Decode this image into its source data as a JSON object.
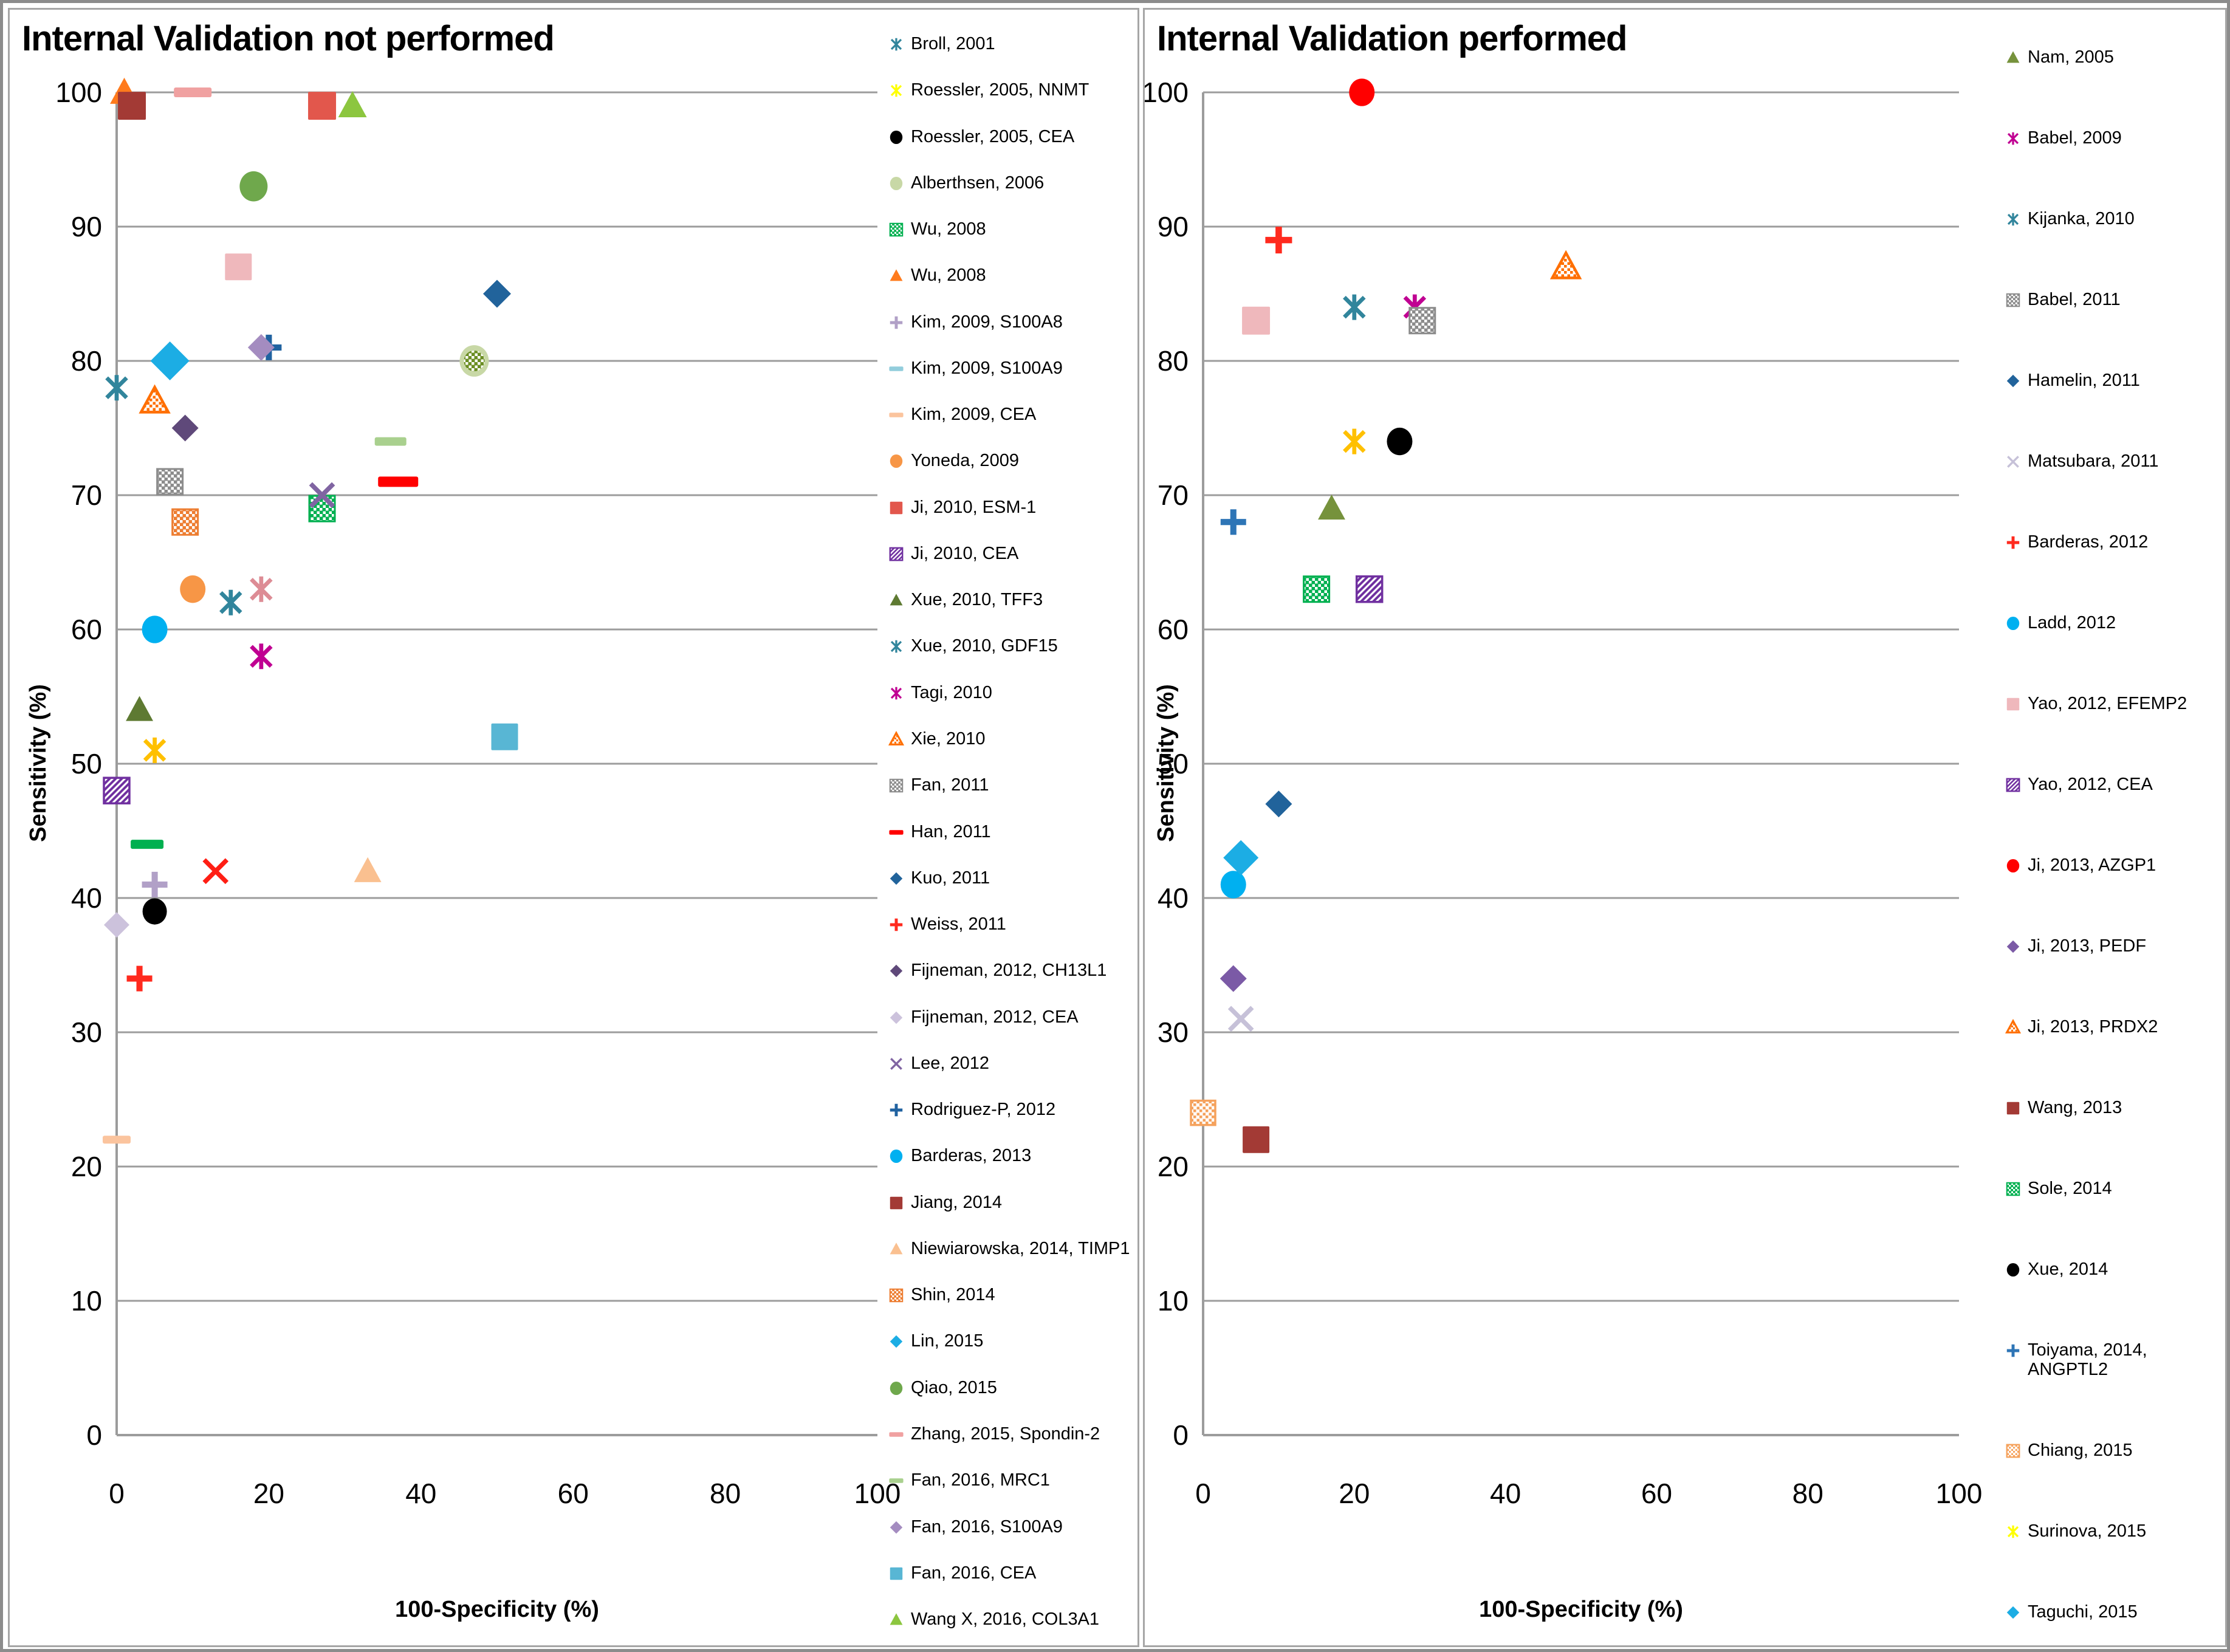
{
  "chart_data": [
    {
      "type": "scatter",
      "title": "Internal Validation not performed",
      "xlabel": "100-Specificity (%)",
      "ylabel": "Sensitivity (%)",
      "xlim": [
        0,
        100
      ],
      "ylim": [
        0,
        100
      ],
      "x_ticks": [
        0,
        20,
        40,
        60,
        80,
        100
      ],
      "y_ticks": [
        0,
        10,
        20,
        30,
        40,
        50,
        60,
        70,
        80,
        90,
        100
      ],
      "grid": "horizontal",
      "gridline_color": "#9c9c9c",
      "legend_position": "right",
      "series": [
        {
          "name": "Broll, 2001",
          "marker": "star",
          "color": "#31859C",
          "x": 0,
          "y": 78,
          "size": 42
        },
        {
          "name": "Roessler, 2005, NNMT",
          "marker": "star",
          "color": "#FFC000",
          "x": 5,
          "y": 51,
          "size": 42,
          "legend_color": "#FFFF00"
        },
        {
          "name": "Roessler, 2005, CEA",
          "marker": "circle",
          "color": "#000000",
          "x": 5,
          "y": 39,
          "size": 40
        },
        {
          "name": "Alberthsen, 2006",
          "marker": "circle",
          "color": "#C8D8A6",
          "x": 47,
          "y": 80,
          "size": 48
        },
        {
          "name": "Wu, 2008",
          "marker": "square-check",
          "color": "#00B050",
          "x": 27,
          "y": 69,
          "size": 42
        },
        {
          "name": "Wu, 2008",
          "marker": "triangle",
          "color": "#FF7B1D",
          "x": 1,
          "y": 100,
          "size": 46
        },
        {
          "name": "Kim, 2009, S100A8",
          "marker": "plus",
          "color": "#B1A0C7",
          "x": 5,
          "y": 41,
          "size": 42
        },
        {
          "name": "Kim, 2009, S100A9",
          "marker": "dash",
          "color": "#92CDDC",
          "x": 7,
          "y": 80,
          "size": [
            36,
            12
          ]
        },
        {
          "name": "Kim, 2009, CEA",
          "marker": "dash",
          "color": "#FBC49E",
          "x": 0,
          "y": 22,
          "size": [
            46,
            13
          ]
        },
        {
          "name": "Yoneda, 2009",
          "marker": "circle",
          "color": "#F79646",
          "x": 10,
          "y": 63,
          "size": 42
        },
        {
          "name": "Ji, 2010, ESM-1",
          "marker": "square",
          "color": "#E2574C",
          "x": 27,
          "y": 99,
          "size": 46
        },
        {
          "name": "Ji, 2010, CEA",
          "marker": "square-diag",
          "color": "#7030A0",
          "x": 0,
          "y": 48,
          "size": 42
        },
        {
          "name": "Xue, 2010, TFF3",
          "marker": "triangle",
          "color": "#5E7A32",
          "x": 3,
          "y": 54,
          "size": 44
        },
        {
          "name": "Xue, 2010, GDF15",
          "marker": "star",
          "color": "#31859C",
          "x": 15,
          "y": 62,
          "size": 42
        },
        {
          "name": "Tagi, 2010",
          "marker": "star",
          "color": "#C00092",
          "x": 19,
          "y": 58,
          "size": 42
        },
        {
          "name": "Xie, 2010",
          "marker": "triangle-open",
          "color": "#FF6F00",
          "x": 5,
          "y": 77,
          "size": 44
        },
        {
          "name": "Fan, 2011",
          "marker": "square-check",
          "color": "#8C8C8C",
          "x": 7,
          "y": 71,
          "size": 42
        },
        {
          "name": "Han, 2011",
          "marker": "dash",
          "color": "#FF0000",
          "x": 37,
          "y": 71,
          "size": [
            66,
            17
          ]
        },
        {
          "name": "Kuo, 2011",
          "marker": "diamond",
          "color": "#21639B",
          "x": 50,
          "y": 85,
          "size": 46
        },
        {
          "name": "Weiss, 2011",
          "marker": "plus",
          "color": "#FF2A1E",
          "x": 3,
          "y": 34,
          "size": 42
        },
        {
          "name": "Fijneman, 2012, CH13L1",
          "marker": "diamond",
          "color": "#5F497A",
          "x": 9,
          "y": 75,
          "size": 44
        },
        {
          "name": "Fijneman, 2012, CEA",
          "marker": "diamond",
          "color": "#CCC2DC",
          "x": 0,
          "y": 38,
          "size": 42
        },
        {
          "name": "Lee, 2012",
          "marker": "xcross",
          "color": "#8064A2",
          "x": 27,
          "y": 70,
          "size": 44
        },
        {
          "name": "Rodriguez-P, 2012",
          "marker": "plus",
          "color": "#2062A0",
          "x": 20,
          "y": 81,
          "size": 42
        },
        {
          "name": "Barderas, 2013",
          "marker": "circle",
          "color": "#00B0F0",
          "x": 5,
          "y": 60,
          "size": 42
        },
        {
          "name": "Jiang, 2014",
          "marker": "square",
          "color": "#A33A35",
          "x": 2,
          "y": 99,
          "size": 46
        },
        {
          "name": "Niewiarowska, 2014, TIMP1",
          "marker": "triangle",
          "color": "#FAC090",
          "x": 33,
          "y": 42,
          "size": 44
        },
        {
          "name": "Shin, 2014",
          "marker": "square-check",
          "color": "#ED7D31",
          "x": 9,
          "y": 68,
          "size": 42
        },
        {
          "name": "Lin, 2015",
          "marker": "diamond",
          "color": "#1CADE4",
          "x": 7,
          "y": 80,
          "size": 64
        },
        {
          "name": "Qiao, 2015",
          "marker": "circle",
          "color": "#6FA84C",
          "x": 18,
          "y": 93,
          "size": 46
        },
        {
          "name": "Zhang, 2015, Spondin-2",
          "marker": "dash",
          "color": "#F0A1A1",
          "x": 10,
          "y": 100,
          "size": [
            62,
            16
          ]
        },
        {
          "name": "Fan, 2016, MRC1",
          "marker": "dash",
          "color": "#A9D08E",
          "x": 36,
          "y": 74,
          "size": [
            52,
            14
          ]
        },
        {
          "name": "Fan, 2016, S100A9",
          "marker": "diamond",
          "color": "#A48CC0",
          "x": 19,
          "y": 81,
          "size": 44
        },
        {
          "name": "Fan, 2016, CEA",
          "marker": "square",
          "color": "#58B6D4",
          "x": 51,
          "y": 52,
          "size": 44
        },
        {
          "name": "Wang X, 2016, COL3A1",
          "marker": "triangle",
          "color": "#8CC63F",
          "x": 31,
          "y": 99,
          "size": 46
        }
      ],
      "unmatched_points": [
        {
          "note": "unlabeled pink square",
          "marker": "square",
          "color": "#EFB8BC",
          "x": 16,
          "y": 87,
          "size": 44
        },
        {
          "note": "unlabeled rose asterisk",
          "marker": "star",
          "color": "#DD8C95",
          "x": 19,
          "y": 63,
          "size": 42
        },
        {
          "note": "unlabeled red X",
          "marker": "xcross",
          "color": "#FF1E14",
          "x": 13,
          "y": 42,
          "size": 44
        },
        {
          "note": "unlabeled green dash",
          "marker": "dash",
          "color": "#00B050",
          "x": 4,
          "y": 44,
          "size": [
            54,
            15
          ]
        },
        {
          "note": "patterned circle over Alberthsen",
          "marker": "circle-check",
          "color": "#6B8E23",
          "x": 47,
          "y": 80,
          "size": 34
        }
      ]
    },
    {
      "type": "scatter",
      "title": "Internal Validation performed",
      "xlabel": "100-Specificity (%)",
      "ylabel": "Sensitivity (%)",
      "xlim": [
        0,
        100
      ],
      "ylim": [
        0,
        100
      ],
      "x_ticks": [
        0,
        20,
        40,
        60,
        80,
        100
      ],
      "y_ticks": [
        0,
        10,
        20,
        30,
        40,
        50,
        60,
        70,
        80,
        90,
        100
      ],
      "grid": "horizontal",
      "gridline_color": "#9c9c9c",
      "legend_position": "right",
      "series": [
        {
          "name": "Nam, 2005",
          "marker": "triangle",
          "color": "#76923C",
          "x": 17,
          "y": 69,
          "size": 44
        },
        {
          "name": "Babel, 2009",
          "marker": "star",
          "color": "#C00092",
          "x": 28,
          "y": 84,
          "size": 42
        },
        {
          "name": "Kijanka, 2010",
          "marker": "star",
          "color": "#31859C",
          "x": 20,
          "y": 84,
          "size": 42
        },
        {
          "name": "Babel, 2011",
          "marker": "square-check",
          "color": "#8C8C8C",
          "x": 29,
          "y": 83,
          "size": 42
        },
        {
          "name": "Hamelin, 2011",
          "marker": "diamond",
          "color": "#21639B",
          "x": 10,
          "y": 47,
          "size": 44
        },
        {
          "name": "Matsubara, 2011",
          "marker": "xcross",
          "color": "#C6C1D8",
          "x": 5,
          "y": 31,
          "size": 44
        },
        {
          "name": "Barderas, 2012",
          "marker": "plus",
          "color": "#FF2A1E",
          "x": 10,
          "y": 89,
          "size": 44
        },
        {
          "name": "Ladd, 2012",
          "marker": "circle",
          "color": "#00B0F0",
          "x": 4,
          "y": 41,
          "size": 42
        },
        {
          "name": "Yao, 2012, EFEMP2",
          "marker": "square",
          "color": "#EFB8BC",
          "x": 7,
          "y": 83,
          "size": 46
        },
        {
          "name": "Yao, 2012, CEA",
          "marker": "square-diag",
          "color": "#7030A0",
          "x": 22,
          "y": 63,
          "size": 42
        },
        {
          "name": "Ji, 2013, AZGP1",
          "marker": "circle",
          "color": "#FF0000",
          "x": 21,
          "y": 100,
          "size": 42
        },
        {
          "name": "Ji, 2013, PEDF",
          "marker": "diamond",
          "color": "#7B5AA6",
          "x": 4,
          "y": 34,
          "size": 44
        },
        {
          "name": "Ji, 2013, PRDX2",
          "marker": "triangle-open",
          "color": "#FF6F00",
          "x": 48,
          "y": 87,
          "size": 44
        },
        {
          "name": "Wang, 2013",
          "marker": "square",
          "color": "#A33A35",
          "x": 7,
          "y": 22,
          "size": 44
        },
        {
          "name": "Sole, 2014",
          "marker": "square-check",
          "color": "#00B050",
          "x": 15,
          "y": 63,
          "size": 42
        },
        {
          "name": "Xue, 2014",
          "marker": "circle",
          "color": "#000000",
          "x": 26,
          "y": 74,
          "size": 42
        },
        {
          "name": "Toiyama, 2014, ANGPTL2",
          "marker": "plus",
          "color": "#2E75B6",
          "x": 4,
          "y": 68,
          "size": 42
        },
        {
          "name": "Chiang, 2015",
          "marker": "square-open",
          "color": "#F5A25D",
          "x": 0,
          "y": 24,
          "size": 40
        },
        {
          "name": "Surinova, 2015",
          "marker": "star",
          "color": "#FFC000",
          "x": 20,
          "y": 74,
          "size": 42,
          "legend_color": "#FFFF00"
        },
        {
          "name": "Taguchi, 2015",
          "marker": "diamond",
          "color": "#1CADE4",
          "x": 5,
          "y": 43,
          "size": 58
        }
      ],
      "unmatched_points": []
    }
  ]
}
